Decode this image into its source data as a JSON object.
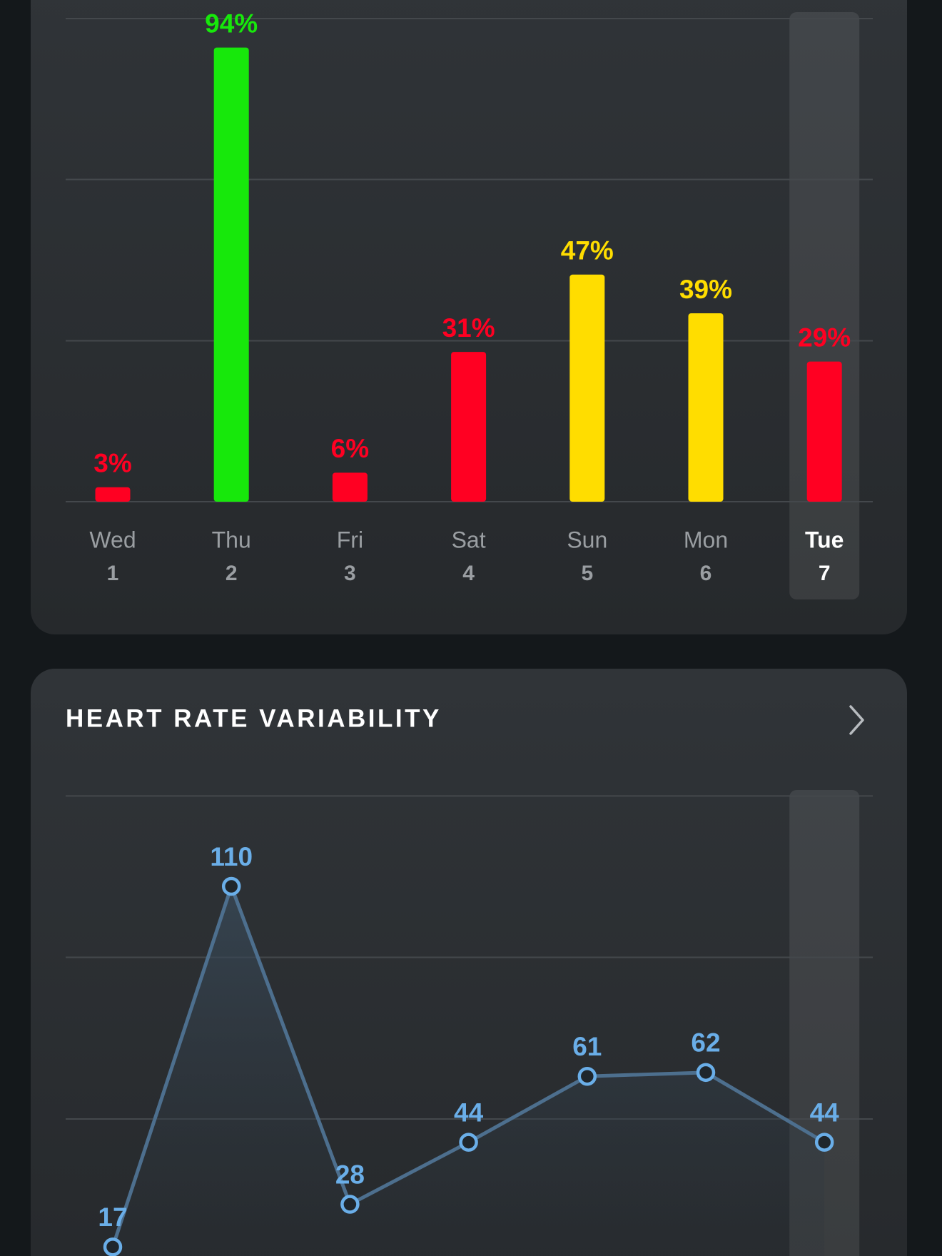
{
  "chart_data": [
    {
      "type": "bar",
      "categories": [
        "Wed",
        "Thu",
        "Fri",
        "Sat",
        "Sun",
        "Mon",
        "Tue"
      ],
      "day_numbers": [
        1,
        2,
        3,
        4,
        5,
        6,
        7
      ],
      "values": [
        3,
        94,
        6,
        31,
        47,
        39,
        29
      ],
      "value_labels": [
        "3%",
        "94%",
        "6%",
        "31%",
        "47%",
        "39%",
        "29%"
      ],
      "colors": [
        "#ff0022",
        "#17e80b",
        "#ff0022",
        "#ff0022",
        "#ffdd00",
        "#ffdd00",
        "#ff0022"
      ],
      "ylim": [
        0,
        100
      ],
      "yticks": [
        0,
        33.3,
        66.7,
        100
      ],
      "grid": true
    },
    {
      "type": "line",
      "title": "HEART RATE VARIABILITY",
      "values": [
        17,
        110,
        28,
        44,
        61,
        62,
        44
      ],
      "color": "#6aaee8",
      "ylim": [
        8.3,
        133.3
      ],
      "yticks": [
        8.3,
        50,
        91.7,
        133.3
      ],
      "grid": true
    }
  ]
}
